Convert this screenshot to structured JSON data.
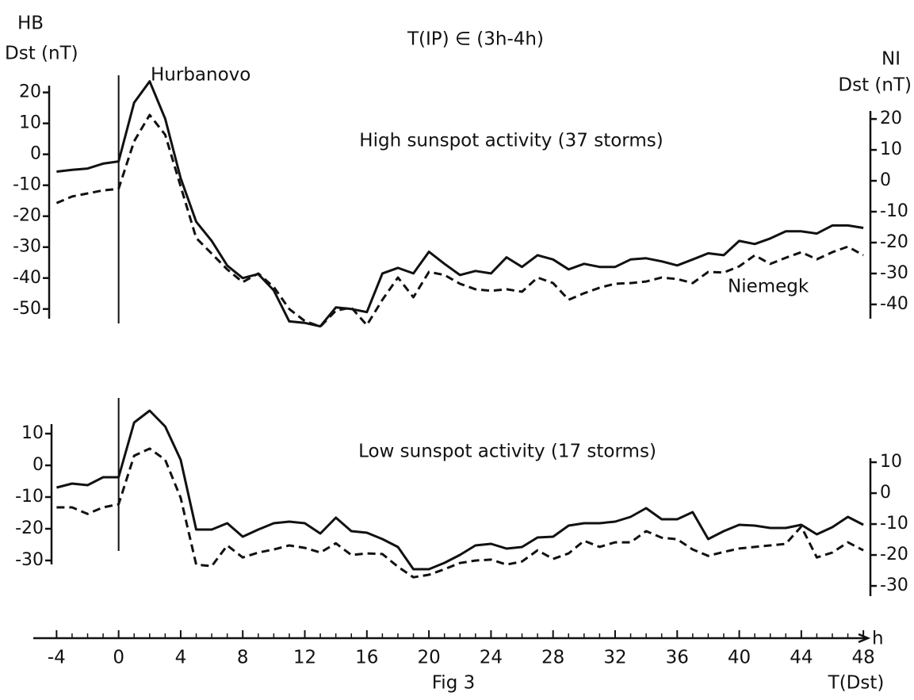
{
  "chart_data": [
    {
      "type": "line",
      "title": "T(IP) ∈ (3h-4h)",
      "subtitle": "High sunspot activity  (37 storms)",
      "ylabel_station": "HB",
      "ylabel": "Dst (nT)",
      "y2label_station": "NI",
      "y2label": "Dst (nT)",
      "xlim": [
        -5.5,
        48.3
      ],
      "ylim": [
        -58,
        24
      ],
      "yticks": [
        -50,
        -40,
        -30,
        -20,
        -10,
        0,
        10,
        20
      ],
      "y2lim": [
        -49.5,
        32.6
      ],
      "y2ticks": [
        -40,
        -30,
        -20,
        -10,
        0,
        10,
        20
      ],
      "vline": 0,
      "x": [
        -4,
        -3,
        -2,
        -1,
        0,
        1,
        2,
        3,
        4,
        5,
        6,
        7,
        8,
        9,
        10,
        11,
        12,
        13,
        14,
        15,
        16,
        17,
        18,
        19,
        20,
        21,
        22,
        23,
        24,
        25,
        26,
        27,
        28,
        29,
        30,
        31,
        32,
        33,
        34,
        35,
        36,
        37,
        38,
        39,
        40,
        41,
        42,
        43,
        44,
        45,
        46,
        47,
        48
      ],
      "series": [
        {
          "name": "Hurbanovo",
          "color": "#111111",
          "dashed": false,
          "values": [
            -5.6,
            -5,
            -4.6,
            -3,
            -2.3,
            16.7,
            23.6,
            11.5,
            -7.7,
            -21.8,
            -28,
            -36,
            -40,
            -38.7,
            -44,
            -54,
            -54.5,
            -55.6,
            -49.5,
            -50,
            -51,
            -38.5,
            -36.7,
            -38.5,
            -31.5,
            -35.4,
            -39,
            -37.7,
            -38.5,
            -33.3,
            -36.4,
            -32.6,
            -34,
            -37.2,
            -35.4,
            -36.4,
            -36.4,
            -34,
            -33.6,
            -34.6,
            -35.9,
            -34,
            -32,
            -32.6,
            -28,
            -29,
            -27.2,
            -24.9,
            -24.9,
            -25.6,
            -23,
            -23,
            -23.8
          ]
        },
        {
          "name": "Niemegk",
          "color": "#111111",
          "dashed": true,
          "axis": "y2",
          "values": [
            -7.2,
            -5.1,
            -4.1,
            -3.1,
            -2.6,
            12.8,
            21.3,
            14.9,
            -1.8,
            -18.5,
            -23.6,
            -28.7,
            -32.8,
            -30,
            -34.4,
            -41.5,
            -45.4,
            -47.2,
            -42,
            -41,
            -46.7,
            -38.5,
            -31.3,
            -37.7,
            -29.5,
            -30.5,
            -33.3,
            -35.1,
            -35.6,
            -35.1,
            -35.9,
            -31.3,
            -33.1,
            -38.5,
            -36.4,
            -34.6,
            -33.3,
            -33.1,
            -32.6,
            -31.3,
            -31.8,
            -33.1,
            -29.5,
            -29.7,
            -27.7,
            -24.1,
            -26.9,
            -24.9,
            -23.1,
            -25.4,
            -23.1,
            -21.3,
            -24.1
          ]
        }
      ]
    },
    {
      "type": "line",
      "subtitle": "Low sunspot  activity (17 storms)",
      "xlim": [
        -5.5,
        48.3
      ],
      "xticks": [
        -4,
        0,
        4,
        8,
        12,
        16,
        20,
        24,
        28,
        32,
        36,
        40,
        44,
        48
      ],
      "xunit": "h",
      "xlabel": "T(Dst)",
      "caption": "Fig 3",
      "ylim": [
        -40.75,
        21.75
      ],
      "yticks": [
        -30,
        -20,
        -10,
        0,
        10
      ],
      "y2lim": [
        -32.8,
        31.3
      ],
      "y2ticks": [
        -30,
        -20,
        -10,
        0,
        10
      ],
      "vline": 0,
      "x": [
        -4,
        -3,
        -2,
        -1,
        0,
        1,
        2,
        3,
        4,
        5,
        6,
        7,
        8,
        9,
        10,
        11,
        12,
        13,
        14,
        15,
        16,
        17,
        18,
        19,
        20,
        21,
        22,
        23,
        24,
        25,
        26,
        27,
        28,
        29,
        30,
        31,
        32,
        33,
        34,
        35,
        36,
        37,
        38,
        39,
        40,
        41,
        42,
        43,
        44,
        45,
        46,
        47,
        48
      ],
      "series": [
        {
          "color": "#111111",
          "dashed": false,
          "values": [
            -7,
            -5.75,
            -6.25,
            -3.75,
            -3.75,
            13.5,
            17.25,
            12.25,
            1.75,
            -20.25,
            -20.25,
            -18.25,
            -22.5,
            -20.25,
            -18.25,
            -17.75,
            -18.25,
            -21.5,
            -16.5,
            -20.75,
            -21.25,
            -23.25,
            -25.75,
            -32.75,
            -32.75,
            -30.75,
            -28.25,
            -25.25,
            -24.75,
            -26.25,
            -25.75,
            -22.75,
            -22.5,
            -19,
            -18.25,
            -18.25,
            -17.75,
            -16.25,
            -13.5,
            -17,
            -17,
            -14.75,
            -23.25,
            -20.75,
            -18.75,
            -19,
            -19.75,
            -19.75,
            -18.75,
            -21.75,
            -19.5,
            -16.25,
            -18.75
          ]
        },
        {
          "color": "#111111",
          "dashed": true,
          "axis": "y2",
          "values": [
            -4.6,
            -4.6,
            -6.7,
            -4.6,
            -3.6,
            12.1,
            14.4,
            10.8,
            -1.5,
            -23.1,
            -23.6,
            -16.9,
            -20.8,
            -19.2,
            -18.2,
            -16.9,
            -17.7,
            -19.2,
            -16.2,
            -20,
            -19.5,
            -19.7,
            -23.8,
            -27.2,
            -26.4,
            -24.6,
            -22.6,
            -21.8,
            -21.5,
            -23.1,
            -22.1,
            -18.5,
            -21.3,
            -19.5,
            -15.4,
            -17.4,
            -15.9,
            -15.9,
            -12.3,
            -14.4,
            -14.9,
            -18.2,
            -20.3,
            -19,
            -17.9,
            -17.4,
            -16.9,
            -16.4,
            -10.8,
            -20.8,
            -19.2,
            -15.9,
            -18.5
          ]
        }
      ]
    }
  ]
}
